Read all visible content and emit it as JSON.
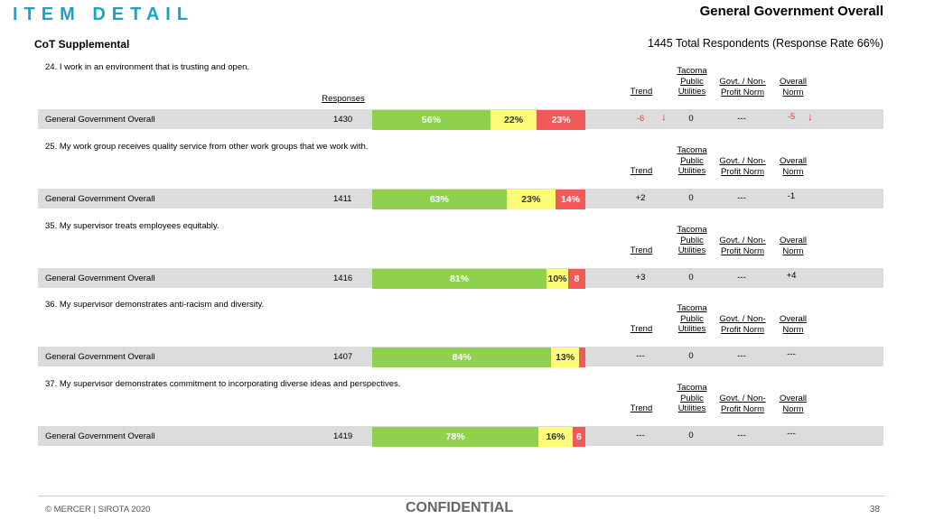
{
  "header": {
    "title": "ITEM DETAIL",
    "group": "General Government Overall",
    "subtitle": "CoT Supplemental",
    "respondents": "1445 Total Respondents (Response Rate  66%)"
  },
  "column_headers": {
    "responses": "Responses",
    "trend": "Trend",
    "tpu_line1": "Tacoma",
    "tpu_line2": "Public",
    "tpu_line3": "Utilities",
    "govt_line1": "Govt. / Non-",
    "govt_line2": "Profit Norm",
    "overall_line1": "Overall",
    "overall_line2": "Norm"
  },
  "colors": {
    "favorable": "#8fd14f",
    "neutral": "#fdfd7a",
    "unfavorable": "#f25a5a",
    "title": "#1ba3c3"
  },
  "questions": [
    {
      "text": "24. I work in an environment that is trusting and open.",
      "row_label": "General Government Overall",
      "responses": "1430",
      "favorable": 56,
      "neutral": 22,
      "unfavorable": 23,
      "favorable_label": "56%",
      "neutral_label": "22%",
      "unfavorable_label": "23%",
      "trend": "-6",
      "trend_down": true,
      "tpu": "0",
      "govt": "---",
      "overall": "-5",
      "overall_down": true
    },
    {
      "text": "25. My work group receives quality service from other work groups that we work with.",
      "row_label": "General Government Overall",
      "responses": "1411",
      "favorable": 63,
      "neutral": 23,
      "unfavorable": 14,
      "favorable_label": "63%",
      "neutral_label": "23%",
      "unfavorable_label": "14%",
      "trend": "+2",
      "trend_down": false,
      "tpu": "0",
      "govt": "---",
      "overall": "-1",
      "overall_down": false
    },
    {
      "text": "35. My supervisor treats employees equitably.",
      "row_label": "General Government Overall",
      "responses": "1416",
      "favorable": 81,
      "neutral": 10,
      "unfavorable": 8,
      "favorable_label": "81%",
      "neutral_label": "10%",
      "unfavorable_label": "8",
      "trend": "+3",
      "trend_down": false,
      "tpu": "0",
      "govt": "---",
      "overall": "+4",
      "overall_down": false
    },
    {
      "text": "36. My supervisor demonstrates anti-racism and diversity.",
      "row_label": "General Government Overall",
      "responses": "1407",
      "favorable": 84,
      "neutral": 13,
      "unfavorable": 3,
      "favorable_label": "84%",
      "neutral_label": "13%",
      "unfavorable_label": "",
      "trend": "---",
      "trend_down": false,
      "tpu": "0",
      "govt": "---",
      "overall": "---",
      "overall_down": false
    },
    {
      "text": "37. My supervisor demonstrates commitment to incorporating diverse ideas and perspectives.",
      "row_label": "General Government Overall",
      "responses": "1419",
      "favorable": 78,
      "neutral": 16,
      "unfavorable": 6,
      "favorable_label": "78%",
      "neutral_label": "16%",
      "unfavorable_label": "6",
      "trend": "---",
      "trend_down": false,
      "tpu": "0",
      "govt": "---",
      "overall": "---",
      "overall_down": false
    }
  ],
  "footer": {
    "copyright": "© MERCER | SIROTA 2020",
    "confidential": "CONFIDENTIAL",
    "page": "38"
  }
}
